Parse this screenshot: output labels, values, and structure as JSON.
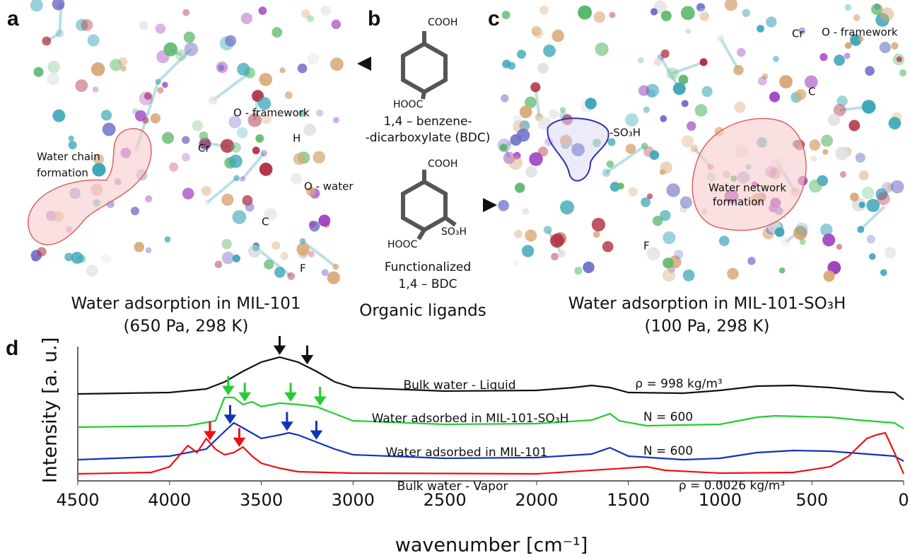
{
  "panels": {
    "a": {
      "label": "a",
      "annotations": [
        "O - framework",
        "Cr",
        "H",
        "Water chain",
        "formation",
        "O - water",
        "C",
        "F"
      ],
      "caption": [
        "Water adsorption in MIL-101",
        "(650 Pa, 298 K)"
      ]
    },
    "b": {
      "label": "b",
      "ligand1": [
        "COOH",
        "HOOC",
        "1,4 – benzene-",
        "-dicarboxylate (BDC)"
      ],
      "ligand2": [
        "COOH",
        "HOOC",
        "SO₃H",
        "Functionalized",
        "1,4 – BDC"
      ],
      "caption": "Organic ligands"
    },
    "c": {
      "label": "c",
      "annotations": [
        "Cr",
        "O - framework",
        "C",
        "-SO₃H",
        "Water network",
        "formation",
        "F"
      ],
      "caption": [
        "Water adsorption in MIL-101-SO₃H",
        "(100 Pa, 298 K)"
      ]
    }
  },
  "chart_data": {
    "type": "line",
    "label": "d",
    "xlabel": "wavenumber [cm⁻¹]",
    "ylabel": "Intensity [a. u.]",
    "xlim": [
      4500,
      0
    ],
    "xticks": [
      4500,
      4000,
      3500,
      3000,
      2500,
      2000,
      1500,
      1000,
      500,
      0
    ],
    "ylim": [
      0,
      19
    ],
    "series": [
      {
        "name": "Bulk water - Liquid",
        "note": "ρ = 998 kg/m³",
        "color": "#111111",
        "x": [
          4500,
          4000,
          3800,
          3700,
          3600,
          3500,
          3400,
          3300,
          3200,
          3100,
          3000,
          2500,
          2000,
          1800,
          1700,
          1600,
          1500,
          1200,
          1000,
          800,
          600,
          400,
          200,
          50,
          0
        ],
        "values": [
          12.3,
          12.5,
          13,
          14,
          15.5,
          16.8,
          17.5,
          16.8,
          15.5,
          14,
          13.2,
          12.7,
          12.8,
          13.2,
          13.5,
          13.2,
          12.5,
          12.4,
          12.8,
          13.4,
          13.5,
          13.2,
          12.7,
          12.5,
          11.5
        ],
        "peaks": [
          3400,
          3250
        ]
      },
      {
        "name": "Water adsorbed in MIL-101-SO₃H",
        "note": "N = 600",
        "color": "#22cc33",
        "x": [
          4500,
          3900,
          3750,
          3700,
          3650,
          3600,
          3550,
          3500,
          3400,
          3300,
          3200,
          3100,
          3000,
          2500,
          2000,
          1700,
          1600,
          1550,
          1400,
          1000,
          800,
          700,
          400,
          200,
          50,
          0
        ],
        "values": [
          7.6,
          7.8,
          8.5,
          11.8,
          11.8,
          10.8,
          11.2,
          10.5,
          11,
          10.8,
          10.5,
          9.5,
          8.5,
          8,
          8.1,
          8.6,
          9.5,
          8.5,
          7.8,
          8,
          9,
          9.2,
          9,
          8.5,
          8.2,
          7.4
        ],
        "peaks": [
          3680,
          3590,
          3340,
          3180
        ]
      },
      {
        "name": "Water adsorbed in MIL-101",
        "note": "N = 600",
        "color": "#1133bb",
        "x": [
          4500,
          4000,
          3800,
          3700,
          3650,
          3600,
          3500,
          3400,
          3350,
          3300,
          3200,
          3100,
          3000,
          2500,
          2000,
          1700,
          1600,
          1500,
          1200,
          1000,
          800,
          600,
          400,
          200,
          50,
          0
        ],
        "values": [
          3,
          3.5,
          4.5,
          7,
          8.2,
          7.5,
          6,
          6.5,
          6.8,
          6.5,
          5.5,
          4.5,
          3.7,
          3.2,
          3.3,
          3.8,
          4.7,
          3.5,
          3,
          3.2,
          4,
          4.3,
          4.2,
          3.8,
          3.5,
          2.8
        ],
        "peaks": [
          3670,
          3360,
          3200
        ]
      },
      {
        "name": "Bulk water - Vapor",
        "note": "ρ = 0.0026 kg/m³",
        "color": "#ee1111",
        "x": [
          4500,
          4100,
          4000,
          3900,
          3850,
          3800,
          3750,
          3700,
          3650,
          3600,
          3550,
          3500,
          3400,
          3300,
          3000,
          2000,
          1400,
          1300,
          1000,
          600,
          400,
          300,
          200,
          150,
          100,
          50,
          0
        ],
        "values": [
          1,
          1.2,
          2,
          5,
          4,
          6,
          4.5,
          3.7,
          4,
          4.8,
          3.5,
          2.5,
          1.8,
          1.3,
          1.1,
          1,
          2,
          1.5,
          1.1,
          1.2,
          2,
          3.5,
          6,
          6.5,
          6.8,
          4,
          1
        ],
        "peaks": [
          3780,
          3620
        ]
      }
    ]
  }
}
